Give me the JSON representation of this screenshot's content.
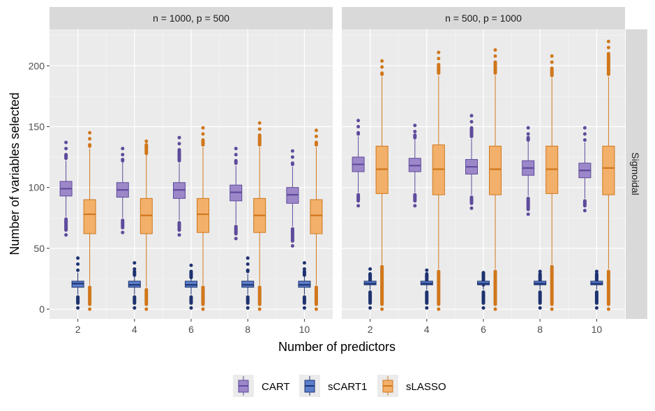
{
  "chart_data": {
    "type": "box",
    "xlabel": "Number of predictors",
    "ylabel": "Number of variables selected",
    "x_ticks": [
      2,
      4,
      6,
      8,
      10
    ],
    "y_ticks": [
      0,
      50,
      100,
      150,
      200
    ],
    "ylim": [
      -8,
      230
    ],
    "row_strip": "Sigmoidal",
    "legend_position": "bottom",
    "colors": {
      "CART": {
        "fill": "#9c87c9",
        "line": "#5e4b9c"
      },
      "sCART1": {
        "fill": "#5b7fca",
        "line": "#1e3270"
      },
      "sLASSO": {
        "fill": "#f2b06a",
        "line": "#d0771c"
      }
    },
    "series": [
      {
        "name": "CART"
      },
      {
        "name": "sCART1"
      },
      {
        "name": "sLASSO"
      }
    ],
    "panels": [
      {
        "label": "n = 1000, p = 500",
        "boxes": [
          {
            "series": "CART",
            "x": 2,
            "q1": 93,
            "median": 99,
            "q3": 105,
            "whisker_low": 76,
            "whisker_high": 122,
            "out_low": 61,
            "out_high": 137
          },
          {
            "series": "sCART1",
            "x": 2,
            "q1": 18,
            "median": 21,
            "q3": 23,
            "whisker_low": 12,
            "whisker_high": 30,
            "out_low": 1,
            "out_high": 42
          },
          {
            "series": "sLASSO",
            "x": 2,
            "q1": 62,
            "median": 78,
            "q3": 90,
            "whisker_low": 20,
            "whisker_high": 132,
            "out_low": 0,
            "out_high": 145
          },
          {
            "series": "CART",
            "x": 4,
            "q1": 92,
            "median": 98,
            "q3": 104,
            "whisker_low": 75,
            "whisker_high": 121,
            "out_low": 63,
            "out_high": 132
          },
          {
            "series": "sCART1",
            "x": 4,
            "q1": 18,
            "median": 20,
            "q3": 23,
            "whisker_low": 12,
            "whisker_high": 29,
            "out_low": 1,
            "out_high": 38
          },
          {
            "series": "sLASSO",
            "x": 4,
            "q1": 62,
            "median": 77,
            "q3": 91,
            "whisker_low": 18,
            "whisker_high": 133,
            "out_low": 0,
            "out_high": 138
          },
          {
            "series": "CART",
            "x": 6,
            "q1": 91,
            "median": 98,
            "q3": 104,
            "whisker_low": 73,
            "whisker_high": 120,
            "out_low": 61,
            "out_high": 141
          },
          {
            "series": "sCART1",
            "x": 6,
            "q1": 18,
            "median": 20,
            "q3": 23,
            "whisker_low": 12,
            "whisker_high": 29,
            "out_low": 1,
            "out_high": 36
          },
          {
            "series": "sLASSO",
            "x": 6,
            "q1": 63,
            "median": 78,
            "q3": 91,
            "whisker_low": 20,
            "whisker_high": 133,
            "out_low": 0,
            "out_high": 149
          },
          {
            "series": "CART",
            "x": 8,
            "q1": 89,
            "median": 96,
            "q3": 102,
            "whisker_low": 70,
            "whisker_high": 118,
            "out_low": 58,
            "out_high": 132
          },
          {
            "series": "sCART1",
            "x": 8,
            "q1": 18,
            "median": 20,
            "q3": 23,
            "whisker_low": 12,
            "whisker_high": 29,
            "out_low": 1,
            "out_high": 42
          },
          {
            "series": "sLASSO",
            "x": 8,
            "q1": 63,
            "median": 77,
            "q3": 91,
            "whisker_low": 20,
            "whisker_high": 133,
            "out_low": 0,
            "out_high": 153
          },
          {
            "series": "CART",
            "x": 10,
            "q1": 87,
            "median": 94,
            "q3": 100,
            "whisker_low": 68,
            "whisker_high": 117,
            "out_low": 52,
            "out_high": 130
          },
          {
            "series": "sCART1",
            "x": 10,
            "q1": 18,
            "median": 20,
            "q3": 23,
            "whisker_low": 12,
            "whisker_high": 29,
            "out_low": 1,
            "out_high": 38
          },
          {
            "series": "sLASSO",
            "x": 10,
            "q1": 62,
            "median": 77,
            "q3": 90,
            "whisker_low": 20,
            "whisker_high": 133,
            "out_low": 0,
            "out_high": 147
          }
        ]
      },
      {
        "label": "n = 500, p = 1000",
        "boxes": [
          {
            "series": "CART",
            "x": 2,
            "q1": 113,
            "median": 119,
            "q3": 125,
            "whisker_low": 96,
            "whisker_high": 142,
            "out_low": 85,
            "out_high": 155
          },
          {
            "series": "sCART1",
            "x": 2,
            "q1": 20,
            "median": 21,
            "q3": 23,
            "whisker_low": 16,
            "whisker_high": 27,
            "out_low": 1,
            "out_high": 33
          },
          {
            "series": "sLASSO",
            "x": 2,
            "q1": 95,
            "median": 115,
            "q3": 134,
            "whisker_low": 37,
            "whisker_high": 191,
            "out_low": 0,
            "out_high": 204
          },
          {
            "series": "CART",
            "x": 4,
            "q1": 113,
            "median": 118,
            "q3": 124,
            "whisker_low": 96,
            "whisker_high": 141,
            "out_low": 85,
            "out_high": 151
          },
          {
            "series": "sCART1",
            "x": 4,
            "q1": 20,
            "median": 21,
            "q3": 23,
            "whisker_low": 16,
            "whisker_high": 27,
            "out_low": 1,
            "out_high": 32
          },
          {
            "series": "sLASSO",
            "x": 4,
            "q1": 94,
            "median": 115,
            "q3": 135,
            "whisker_low": 33,
            "whisker_high": 192,
            "out_low": 0,
            "out_high": 211
          },
          {
            "series": "CART",
            "x": 6,
            "q1": 111,
            "median": 117,
            "q3": 123,
            "whisker_low": 94,
            "whisker_high": 140,
            "out_low": 83,
            "out_high": 159
          },
          {
            "series": "sCART1",
            "x": 6,
            "q1": 20,
            "median": 21,
            "q3": 23,
            "whisker_low": 16,
            "whisker_high": 27,
            "out_low": 1,
            "out_high": 30
          },
          {
            "series": "sLASSO",
            "x": 6,
            "q1": 94,
            "median": 115,
            "q3": 134,
            "whisker_low": 33,
            "whisker_high": 192,
            "out_low": 0,
            "out_high": 213
          },
          {
            "series": "CART",
            "x": 8,
            "q1": 110,
            "median": 116,
            "q3": 122,
            "whisker_low": 93,
            "whisker_high": 139,
            "out_low": 78,
            "out_high": 149
          },
          {
            "series": "sCART1",
            "x": 8,
            "q1": 20,
            "median": 21,
            "q3": 23,
            "whisker_low": 16,
            "whisker_high": 27,
            "out_low": 1,
            "out_high": 31
          },
          {
            "series": "sLASSO",
            "x": 8,
            "q1": 95,
            "median": 115,
            "q3": 134,
            "whisker_low": 37,
            "whisker_high": 190,
            "out_low": 0,
            "out_high": 208
          },
          {
            "series": "CART",
            "x": 10,
            "q1": 108,
            "median": 114,
            "q3": 120,
            "whisker_low": 91,
            "whisker_high": 137,
            "out_low": 81,
            "out_high": 149
          },
          {
            "series": "sCART1",
            "x": 10,
            "q1": 20,
            "median": 21,
            "q3": 23,
            "whisker_low": 16,
            "whisker_high": 27,
            "out_low": 1,
            "out_high": 31
          },
          {
            "series": "sLASSO",
            "x": 10,
            "q1": 94,
            "median": 116,
            "q3": 134,
            "whisker_low": 33,
            "whisker_high": 191,
            "out_low": 0,
            "out_high": 220
          }
        ]
      }
    ]
  }
}
